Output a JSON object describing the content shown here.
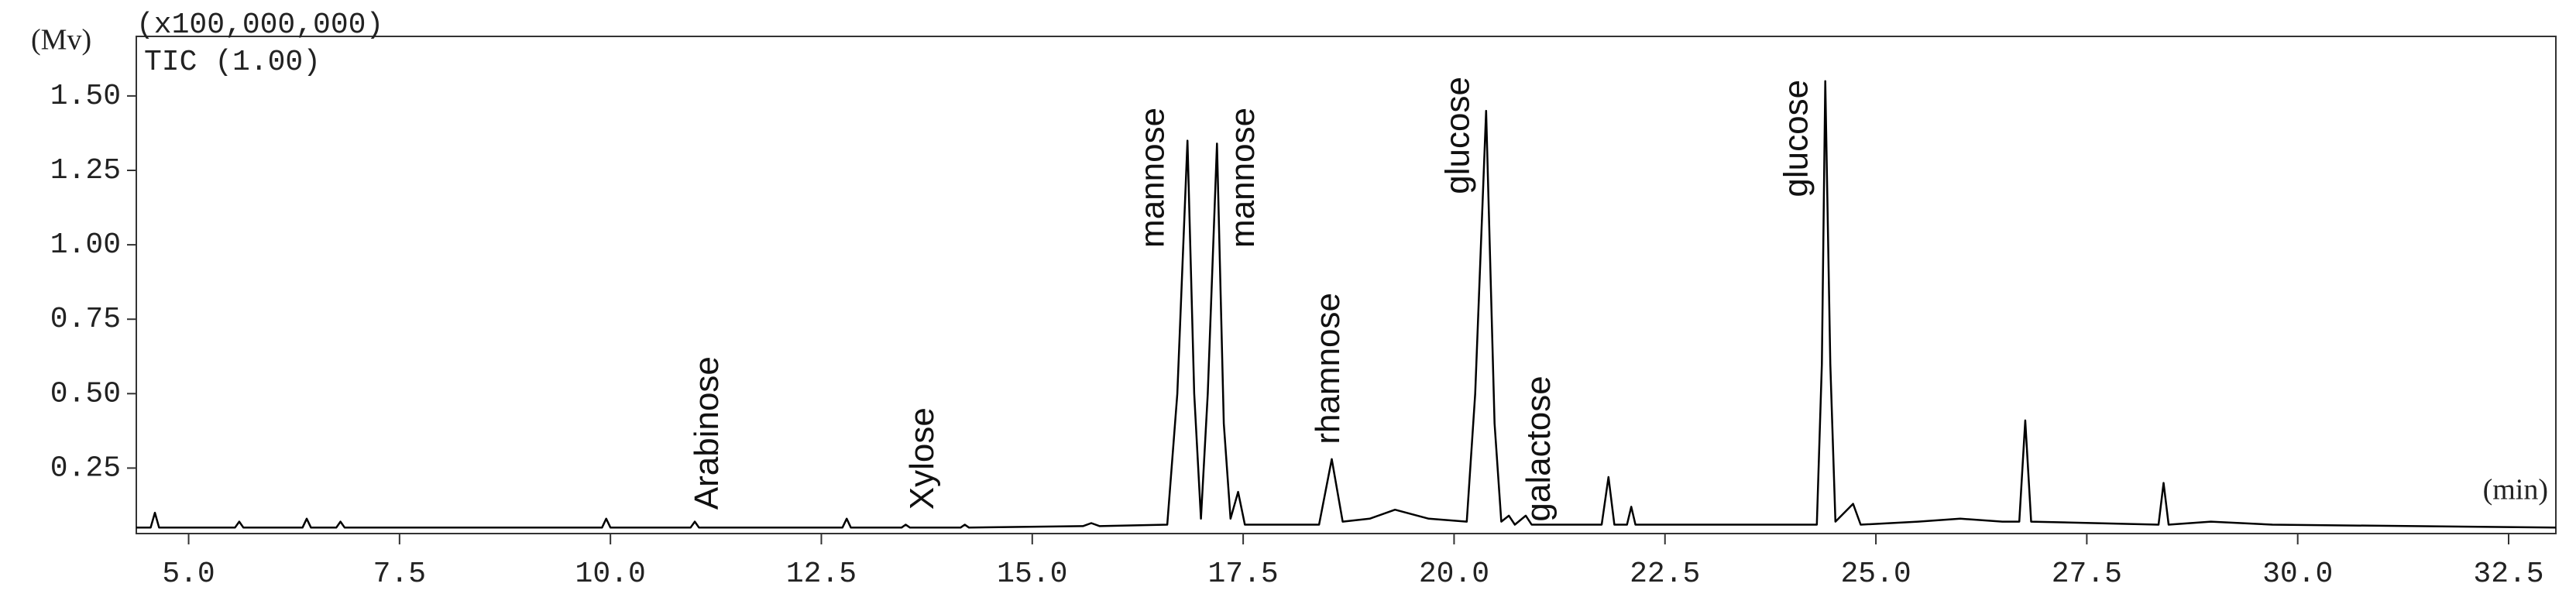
{
  "chart_data": {
    "type": "line",
    "y_unit": "(Mv)",
    "y_scale_note": "(x100,000,000)",
    "trace_label": "TIC (1.00)",
    "x_unit": "(min)",
    "xlim": [
      4.38,
      33.06
    ],
    "ylim": [
      0.03,
      1.7
    ],
    "xticks": [
      {
        "value": 5,
        "label": "5.0"
      },
      7.5,
      {
        "value": 10,
        "label": "10.0"
      },
      12.5,
      {
        "value": 15,
        "label": "15.0"
      },
      17.5,
      {
        "value": 20,
        "label": "20.0"
      },
      22.5,
      {
        "value": 25,
        "label": "25.0"
      },
      27.5,
      {
        "value": 30,
        "label": "30.0"
      },
      32.5
    ],
    "yticks": [
      0.25,
      {
        "value": 0.5,
        "label": "0.50"
      },
      0.75,
      {
        "value": 1,
        "label": "1.00"
      },
      1.25,
      {
        "value": 1.5,
        "label": "1.50"
      }
    ],
    "color": "#000000",
    "x": [
      4.38,
      4.55,
      4.6,
      4.65,
      5.55,
      5.6,
      5.65,
      6.35,
      6.4,
      6.45,
      6.75,
      6.8,
      6.85,
      9.9,
      9.95,
      10.0,
      10.95,
      11.0,
      11.05,
      12.75,
      12.8,
      12.85,
      13.45,
      13.5,
      13.55,
      14.15,
      14.2,
      14.25,
      15.6,
      15.7,
      15.8,
      16.6,
      16.72,
      16.84,
      16.92,
      17.0,
      17.08,
      17.19,
      17.27,
      17.35,
      17.44,
      17.52,
      18.4,
      18.55,
      18.68,
      19.0,
      19.3,
      19.7,
      20.15,
      20.25,
      20.38,
      20.48,
      20.56,
      20.65,
      20.72,
      20.85,
      20.92,
      21.75,
      21.83,
      21.9,
      22.05,
      22.1,
      22.15,
      24.3,
      24.36,
      24.4,
      24.46,
      24.52,
      24.73,
      24.82,
      25.5,
      26.0,
      26.5,
      26.7,
      26.77,
      26.84,
      28.35,
      28.41,
      28.47,
      28.97,
      29.7,
      33.06
    ],
    "values": [
      0.05,
      0.05,
      0.1,
      0.05,
      0.05,
      0.07,
      0.05,
      0.05,
      0.08,
      0.05,
      0.05,
      0.07,
      0.05,
      0.05,
      0.08,
      0.05,
      0.05,
      0.07,
      0.05,
      0.05,
      0.08,
      0.05,
      0.05,
      0.06,
      0.05,
      0.05,
      0.06,
      0.05,
      0.055,
      0.065,
      0.055,
      0.06,
      0.5,
      1.35,
      0.5,
      0.08,
      0.5,
      1.34,
      0.4,
      0.08,
      0.17,
      0.06,
      0.06,
      0.28,
      0.07,
      0.08,
      0.11,
      0.08,
      0.07,
      0.5,
      1.45,
      0.4,
      0.07,
      0.09,
      0.06,
      0.09,
      0.06,
      0.06,
      0.22,
      0.06,
      0.06,
      0.12,
      0.06,
      0.06,
      0.6,
      1.55,
      0.6,
      0.07,
      0.13,
      0.06,
      0.07,
      0.08,
      0.07,
      0.07,
      0.41,
      0.07,
      0.06,
      0.2,
      0.06,
      0.07,
      0.06,
      0.05
    ],
    "annotations": [
      {
        "text": "Arabinose",
        "x": 11.17,
        "y": 0.11
      },
      {
        "text": "Xylose",
        "x": 13.72,
        "y": 0.11
      },
      {
        "text": "mannose",
        "x": 16.45,
        "y": 0.99
      },
      {
        "text": "mannose",
        "x": 17.52,
        "y": 0.99
      },
      {
        "text": "rhamnose",
        "x": 18.53,
        "y": 0.33
      },
      {
        "text": "glucose",
        "x": 20.07,
        "y": 1.17
      },
      {
        "text": "galactose",
        "x": 21.03,
        "y": 0.07
      },
      {
        "text": "glucose",
        "x": 24.08,
        "y": 1.16
      }
    ]
  }
}
